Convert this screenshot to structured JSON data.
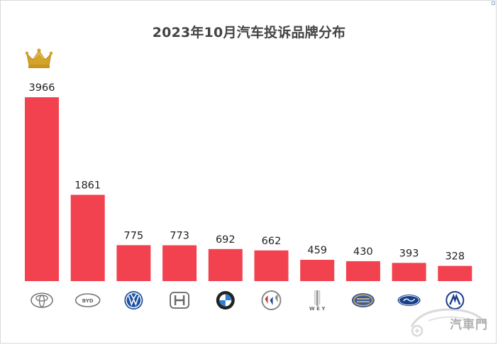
{
  "title": "2023年10月汽车投诉品牌分布",
  "watermark": "汽車門",
  "colors": {
    "bar": "#f2414f",
    "crown": "#d4a32a",
    "title": "#444444"
  },
  "chart_data": {
    "type": "bar",
    "title": "2023年10月汽车投诉品牌分布",
    "categories": [
      "toyota-logo",
      "byd-logo",
      "volkswagen-logo",
      "honda-logo",
      "bmw-logo",
      "buick-logo",
      "wey-logo",
      "geely-logo",
      "ford-logo",
      "changan-logo"
    ],
    "values": [
      3966,
      1861,
      775,
      773,
      692,
      662,
      459,
      430,
      393,
      328
    ],
    "xlabel": "",
    "ylabel": "",
    "ylim": [
      0,
      3966
    ],
    "grid": false,
    "legend": "none",
    "top_marker": "crown-icon"
  }
}
